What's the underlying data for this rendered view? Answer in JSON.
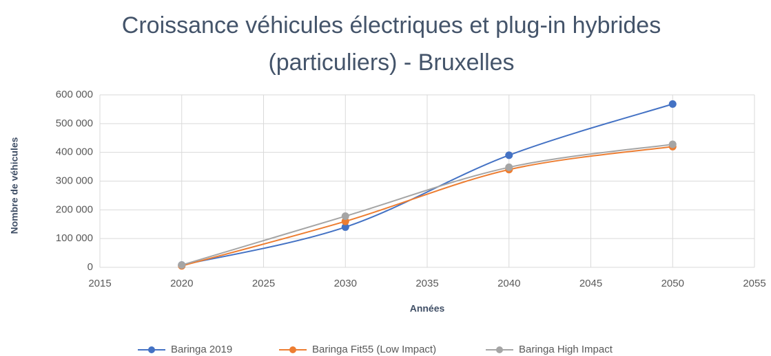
{
  "chart_data": {
    "type": "line",
    "title": "Croissance véhicules électriques et plug-in hybrides (particuliers) - Bruxelles",
    "xlabel": "Années",
    "ylabel": "Nombre de véhicules",
    "x": [
      2020,
      2030,
      2040,
      2050
    ],
    "series": [
      {
        "name": "Baringa 2019",
        "color": "#4472c4",
        "values": [
          8000,
          140000,
          390000,
          568000
        ]
      },
      {
        "name": "Baringa Fit55 (Low Impact)",
        "color": "#ed7d31",
        "values": [
          5000,
          160000,
          340000,
          420000
        ]
      },
      {
        "name": "Baringa High Impact",
        "color": "#a5a5a5",
        "values": [
          8000,
          178000,
          348000,
          428000
        ]
      }
    ],
    "xlim": [
      2015,
      2055
    ],
    "xticks": [
      2015,
      2020,
      2025,
      2030,
      2035,
      2040,
      2045,
      2050,
      2055
    ],
    "ylim": [
      0,
      600000
    ],
    "yticks": [
      0,
      {
        "value": 100000,
        "label": "100 000"
      },
      {
        "value": 200000,
        "label": "200 000"
      },
      {
        "value": 300000,
        "label": "300 000"
      },
      {
        "value": 400000,
        "label": "400 000"
      },
      {
        "value": 500000,
        "label": "500 000"
      },
      {
        "value": 600000,
        "label": "600 000"
      }
    ],
    "grid": true,
    "smooth": true,
    "legend": "bottom"
  }
}
